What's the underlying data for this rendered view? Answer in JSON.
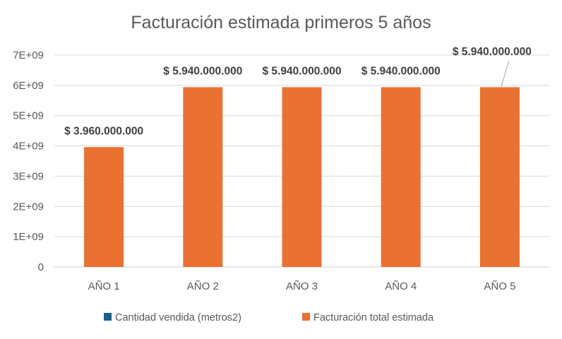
{
  "chart_data": {
    "type": "bar",
    "title": "Facturación estimada primeros 5 años",
    "xlabel": "",
    "ylabel": "",
    "categories": [
      "AÑO 1",
      "AÑO 2",
      "AÑO 3",
      "AÑO 4",
      "AÑO 5"
    ],
    "ylim": [
      0,
      7000000000
    ],
    "yticks": [
      0,
      1000000000,
      2000000000,
      3000000000,
      4000000000,
      5000000000,
      6000000000,
      7000000000
    ],
    "ytick_labels": [
      "0",
      "1E+09",
      "2E+09",
      "3E+09",
      "4E+09",
      "5E+09",
      "6E+09",
      "7E+09"
    ],
    "grid": true,
    "legend_position": "bottom",
    "series": [
      {
        "name": "Cantidad vendida (metros2)",
        "color": "#1F5F8B",
        "values": [
          null,
          null,
          null,
          null,
          null
        ]
      },
      {
        "name": "Facturación total estimada",
        "color": "#E97132",
        "values": [
          3960000000,
          5940000000,
          5940000000,
          5940000000,
          5940000000
        ],
        "data_labels": [
          "$ 3.960.000.000",
          "$ 5.940.000.000",
          "$ 5.940.000.000",
          "$ 5.940.000.000",
          "$ 5.940.000.000"
        ]
      }
    ]
  }
}
